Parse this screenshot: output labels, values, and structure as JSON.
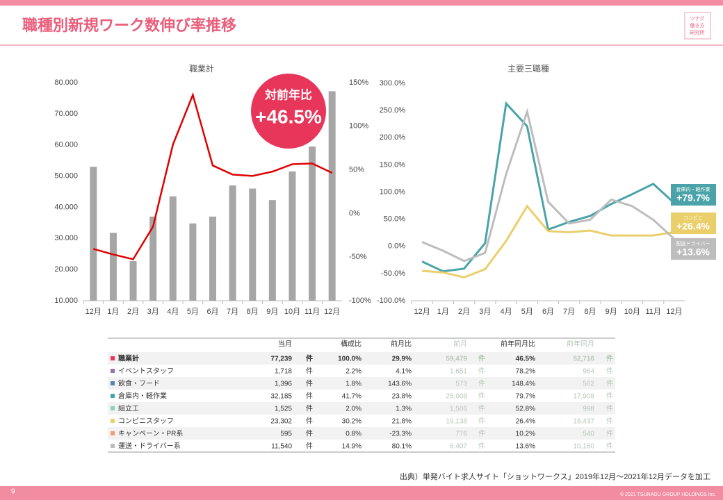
{
  "header": {
    "title": "職種別新規ワーク数伸び率推移",
    "logo": [
      "ツナグ",
      "働き方",
      "研究所"
    ]
  },
  "chart_data": [
    {
      "type": "bar-line",
      "title": "職業計",
      "categories": [
        "12月",
        "1月",
        "2月",
        "3月",
        "4月",
        "5月",
        "6月",
        "7月",
        "8月",
        "9月",
        "10月",
        "11月",
        "12月"
      ],
      "series": [
        {
          "name": "新規ワーク数",
          "type": "bar",
          "color": "#a6a6a6",
          "values": [
            53000,
            31800,
            22700,
            37000,
            43500,
            34800,
            37000,
            47000,
            46000,
            42300,
            51500,
            59500,
            77239
          ]
        },
        {
          "name": "対前年比",
          "type": "line",
          "axis": "y2",
          "color": "#e00000",
          "values": [
            -40.6,
            -47,
            -52.5,
            -15,
            79,
            136,
            55,
            44.6,
            43,
            48,
            56.5,
            57.3,
            46.5
          ]
        }
      ],
      "ylim": [
        10000,
        80000
      ],
      "yticks": [
        {
          "value": 10000,
          "label": "10.000"
        },
        {
          "value": 20000,
          "label": "20.000"
        },
        {
          "value": 30000,
          "label": "30.000"
        },
        {
          "value": 40000,
          "label": "40.000"
        },
        {
          "value": 50000,
          "label": "50.000"
        },
        {
          "value": 60000,
          "label": "60.000"
        },
        {
          "value": 70000,
          "label": "70.000"
        },
        {
          "value": 80000,
          "label": "80.000"
        }
      ],
      "y2lim": [
        -100,
        150
      ],
      "y2ticks": [
        {
          "value": -100,
          "label": "-100%"
        },
        {
          "value": -50,
          "label": "-50%"
        },
        {
          "value": 0,
          "label": "0%"
        },
        {
          "value": 50,
          "label": "50%"
        },
        {
          "value": 100,
          "label": "100%"
        },
        {
          "value": 150,
          "label": "150%"
        }
      ],
      "grid": false,
      "annotations": [
        "対前年比",
        "+46.5%"
      ]
    },
    {
      "type": "line",
      "title": "主要三職種",
      "categories": [
        "12月",
        "1月",
        "2月",
        "3月",
        "4月",
        "5月",
        "6月",
        "7月",
        "8月",
        "9月",
        "10月",
        "11月",
        "12月"
      ],
      "series": [
        {
          "name": "倉庫内・軽作業",
          "color": "#4aa3a8",
          "values": [
            -28,
            -46,
            -41,
            6,
            263,
            221,
            31,
            45,
            56,
            78,
            96,
            115,
            79.7
          ],
          "end_label": "+79.7%"
        },
        {
          "name": "コンビニ",
          "color": "#ebcf6b",
          "values": [
            -45,
            -48,
            -57,
            -42,
            10,
            74,
            28,
            26,
            29,
            20,
            20,
            20,
            26.4
          ],
          "end_label": "+26.4%"
        },
        {
          "name": "配送ドライバー",
          "color": "#bdbdbd",
          "values": [
            8,
            -8,
            -27,
            -12,
            133,
            248,
            82,
            42,
            49,
            86,
            74,
            49,
            13.6
          ],
          "end_label": "+13.6%"
        }
      ],
      "ylim": [
        -100,
        300
      ],
      "yticks": [
        {
          "value": -100,
          "label": "-100.0%"
        },
        {
          "value": -50,
          "label": "-50.0%"
        },
        {
          "value": 0,
          "label": "0.0%"
        },
        {
          "value": 50,
          "label": "50.0%"
        },
        {
          "value": 100,
          "label": "100.0%"
        },
        {
          "value": 150,
          "label": "150.0%"
        },
        {
          "value": 200,
          "label": "200.0%"
        },
        {
          "value": 250,
          "label": "250.0%"
        },
        {
          "value": 300,
          "label": "300.0%"
        }
      ],
      "grid": false
    }
  ],
  "table": {
    "header": [
      "当月",
      "構成比",
      "前月比",
      "前月",
      "前年同月比",
      "前年同月"
    ],
    "rows": [
      [
        "職業計",
        "77,239",
        "件",
        "100.0%",
        "29.9%",
        "59,479",
        "件",
        "46.5%",
        "52,716",
        "件"
      ],
      [
        "イベントスタッフ",
        "1,718",
        "件",
        "2.2%",
        "4.1%",
        "1,651",
        "件",
        "78.2%",
        "964",
        "件"
      ],
      [
        "飲食・フード",
        "1,396",
        "件",
        "1.8%",
        "143.6%",
        "573",
        "件",
        "148.4%",
        "562",
        "件"
      ],
      [
        "倉庫内・軽作業",
        "32,185",
        "件",
        "41.7%",
        "23.8%",
        "26,008",
        "件",
        "79.7%",
        "17,908",
        "件"
      ],
      [
        "組立工",
        "1,525",
        "件",
        "2.0%",
        "1.3%",
        "1,506",
        "件",
        "52.8%",
        "998",
        "件"
      ],
      [
        "コンビニスタッフ",
        "23,302",
        "件",
        "30.2%",
        "21.8%",
        "19,138",
        "件",
        "26.4%",
        "18,437",
        "件"
      ],
      [
        "キャンペーン・PR系",
        "595",
        "件",
        "0.8%",
        "-23.3%",
        "776",
        "件",
        "10.2%",
        "540",
        "件"
      ],
      [
        "運送・ドライバー系",
        "11,540",
        "件",
        "14.9%",
        "80.1%",
        "6,407",
        "件",
        "13.6%",
        "10,160",
        "件"
      ]
    ]
  },
  "footer": {
    "source": "出典）単発バイト求人サイト「ショットワークス」2019年12月～2021年12月データを加工",
    "page": "9",
    "copyright": "© 2021 TSUNAGU GROUP HOLDINGS Inc."
  }
}
